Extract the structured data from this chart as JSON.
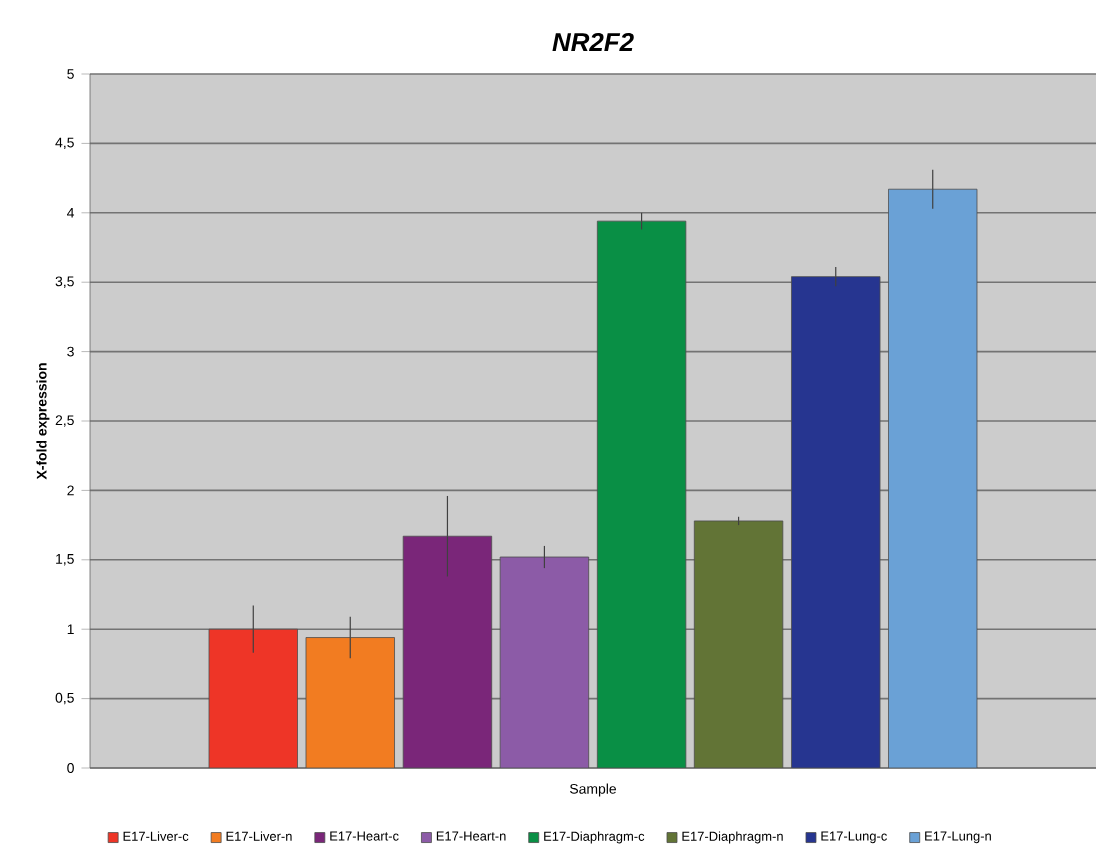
{
  "chart_data": {
    "type": "bar",
    "title": "NR2F2",
    "ylabel": "X-fold expression",
    "categories": [
      "Sample"
    ],
    "series": [
      {
        "name": "E17-Liver-c",
        "color": "#ee3527",
        "values": [
          1.0
        ],
        "errors": [
          0.17
        ]
      },
      {
        "name": "E17-Liver-n",
        "color": "#f27c21",
        "values": [
          0.94
        ],
        "errors": [
          0.15
        ]
      },
      {
        "name": "E17-Heart-c",
        "color": "#7a2679",
        "values": [
          1.67
        ],
        "errors": [
          0.29
        ]
      },
      {
        "name": "E17-Heart-n",
        "color": "#8c5ba7",
        "values": [
          1.52
        ],
        "errors": [
          0.08
        ]
      },
      {
        "name": "E17-Diaphragm-c",
        "color": "#098f45",
        "values": [
          3.94
        ],
        "errors": [
          0.06
        ]
      },
      {
        "name": "E17-Diaphragm-n",
        "color": "#627436",
        "values": [
          1.78
        ],
        "errors": [
          0.03
        ]
      },
      {
        "name": "E17-Lung-c",
        "color": "#263590",
        "values": [
          3.54
        ],
        "errors": [
          0.07
        ]
      },
      {
        "name": "E17-Lung-n",
        "color": "#6aa1d6",
        "values": [
          4.17
        ],
        "errors": [
          0.14
        ]
      }
    ],
    "ylim": [
      0,
      5
    ],
    "yticks": [
      0,
      {
        "value": 0.5,
        "label": "0,5"
      },
      1,
      {
        "value": 1.5,
        "label": "1,5"
      },
      2,
      {
        "value": 2.5,
        "label": "2,5"
      },
      3,
      {
        "value": 3.5,
        "label": "3,5"
      },
      4,
      {
        "value": 4.5,
        "label": "4,5"
      },
      5
    ],
    "grid": "y",
    "legend": "bottom"
  }
}
